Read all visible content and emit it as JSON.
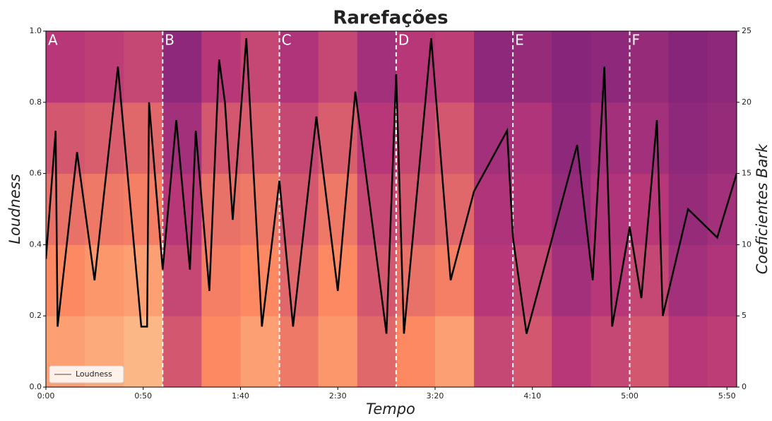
{
  "chart_data": {
    "type": "spectrogram-line",
    "title": "Rarefações",
    "x_label": "Tempo",
    "y_label": "Loudness",
    "y2_label": "Coeficientes Bark",
    "xlim": [
      0,
      355
    ],
    "xticks": [
      {
        "value": 0,
        "label": "0:00"
      },
      {
        "value": 50,
        "label": "0:50"
      },
      {
        "value": 100,
        "label": "1:40"
      },
      {
        "value": 150,
        "label": "2:30"
      },
      {
        "value": 200,
        "label": "3:20"
      },
      {
        "value": 250,
        "label": "4:10"
      },
      {
        "value": 300,
        "label": "5:00"
      },
      {
        "value": 350,
        "label": "5:50"
      }
    ],
    "ylim": [
      0,
      1
    ],
    "yticks": [
      {
        "value": 0,
        "label": "0.0"
      },
      {
        "value": 0.2,
        "label": "0.2"
      },
      {
        "value": 0.4,
        "label": "0.4"
      },
      {
        "value": 0.6,
        "label": "0.6"
      },
      {
        "value": 0.8,
        "label": "0.8"
      },
      {
        "value": 1,
        "label": "1.0"
      }
    ],
    "y2lim": [
      0,
      25
    ],
    "y2ticks": [
      0,
      5,
      10,
      15,
      20,
      25
    ],
    "legend": "lower left",
    "sections": [
      {
        "time": 0,
        "label": "A"
      },
      {
        "time": 60,
        "label": "B"
      },
      {
        "time": 120,
        "label": "C"
      },
      {
        "time": 180,
        "label": "D"
      },
      {
        "time": 240,
        "label": "E"
      },
      {
        "time": 300,
        "label": "F"
      }
    ],
    "spectrogram": {
      "time_bins": [
        0,
        20,
        40,
        60,
        80,
        100,
        120,
        140,
        160,
        180,
        200,
        220,
        240,
        260,
        280,
        300,
        320,
        340,
        355
      ],
      "bark_bins": [
        0,
        5,
        10,
        15,
        20,
        25
      ],
      "intensity": [
        [
          0.8,
          0.82,
          0.85,
          0.6,
          0.75,
          0.8,
          0.7,
          0.78,
          0.65,
          0.75,
          0.8,
          0.55,
          0.6,
          0.5,
          0.55,
          0.6,
          0.5,
          0.52
        ],
        [
          0.75,
          0.78,
          0.8,
          0.55,
          0.72,
          0.75,
          0.65,
          0.75,
          0.6,
          0.68,
          0.72,
          0.5,
          0.55,
          0.45,
          0.5,
          0.55,
          0.45,
          0.48
        ],
        [
          0.68,
          0.7,
          0.72,
          0.5,
          0.68,
          0.7,
          0.6,
          0.7,
          0.55,
          0.6,
          0.65,
          0.48,
          0.5,
          0.42,
          0.48,
          0.5,
          0.42,
          0.45
        ],
        [
          0.6,
          0.62,
          0.65,
          0.45,
          0.6,
          0.62,
          0.55,
          0.62,
          0.5,
          0.55,
          0.6,
          0.45,
          0.48,
          0.4,
          0.45,
          0.45,
          0.4,
          0.42
        ],
        [
          0.5,
          0.52,
          0.55,
          0.4,
          0.5,
          0.55,
          0.48,
          0.55,
          0.45,
          0.5,
          0.52,
          0.4,
          0.42,
          0.38,
          0.4,
          0.42,
          0.38,
          0.4
        ]
      ]
    },
    "series": [
      {
        "name": "Loudness",
        "color": "#000000",
        "x": [
          0,
          5,
          6,
          16,
          25,
          37,
          49,
          52,
          53,
          60,
          67,
          74,
          77,
          84,
          89,
          92,
          96,
          103,
          111,
          120,
          127,
          139,
          150,
          159,
          175,
          180,
          184,
          198,
          208,
          220,
          237,
          240,
          247,
          273,
          281,
          287,
          291,
          300,
          306,
          314,
          317,
          330,
          345,
          355
        ],
        "values": [
          0.36,
          0.72,
          0.17,
          0.66,
          0.3,
          0.9,
          0.17,
          0.17,
          0.8,
          0.33,
          0.75,
          0.33,
          0.72,
          0.27,
          0.92,
          0.8,
          0.47,
          0.98,
          0.17,
          0.58,
          0.17,
          0.76,
          0.27,
          0.83,
          0.15,
          0.88,
          0.15,
          0.98,
          0.3,
          0.55,
          0.72,
          0.42,
          0.15,
          0.68,
          0.3,
          0.9,
          0.17,
          0.45,
          0.25,
          0.75,
          0.2,
          0.5,
          0.42,
          0.6
        ]
      }
    ]
  }
}
